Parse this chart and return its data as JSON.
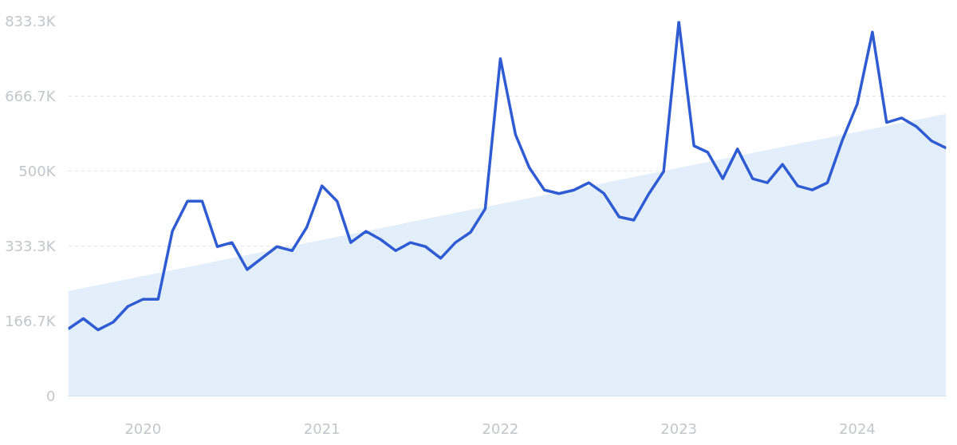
{
  "chart_data": {
    "type": "line",
    "x": [
      "2019-08",
      "2019-09",
      "2019-10",
      "2019-11",
      "2019-12",
      "2020-01",
      "2020-02",
      "2020-03",
      "2020-04",
      "2020-05",
      "2020-06",
      "2020-07",
      "2020-08",
      "2020-09",
      "2020-10",
      "2020-11",
      "2020-12",
      "2021-01",
      "2021-02",
      "2021-03",
      "2021-04",
      "2021-05",
      "2021-06",
      "2021-07",
      "2021-08",
      "2021-09",
      "2021-10",
      "2021-11",
      "2021-12",
      "2022-01",
      "2022-02",
      "2022-03",
      "2022-04",
      "2022-05",
      "2022-06",
      "2022-07",
      "2022-08",
      "2022-09",
      "2022-10",
      "2022-11",
      "2022-12",
      "2023-01",
      "2023-02",
      "2023-03",
      "2023-04",
      "2023-05",
      "2023-06",
      "2023-07",
      "2023-08",
      "2023-09",
      "2023-10",
      "2023-11",
      "2023-12",
      "2024-01",
      "2024-02",
      "2024-03",
      "2024-04",
      "2024-05",
      "2024-06",
      "2024-07"
    ],
    "series": [
      {
        "type": "area",
        "color": "#e3eefb",
        "x": [
          "2019-08",
          "2024-07"
        ],
        "values": [
          233000,
          627000
        ]
      },
      {
        "color": "#2f5bd3",
        "values": [
          149000,
          172000,
          147000,
          164000,
          199000,
          215000,
          215000,
          366000,
          433000,
          433000,
          332000,
          341000,
          281000,
          307000,
          332000,
          323000,
          375000,
          467000,
          433000,
          341000,
          366000,
          348000,
          323000,
          341000,
          332000,
          306000,
          341000,
          364000,
          416000,
          750000,
          581000,
          508000,
          458000,
          450000,
          458000,
          474000,
          450000,
          398000,
          391000,
          450000,
          499000,
          832000,
          556000,
          542000,
          483000,
          549000,
          483000,
          474000,
          515000,
          467000,
          458000,
          474000,
          567000,
          649000,
          809000,
          608000,
          618000,
          599000,
          567000,
          551000
        ]
      }
    ],
    "xlim": [
      "2019-08",
      "2024-07"
    ],
    "xticks": [
      {
        "value": "2020-01",
        "label": "2020"
      },
      {
        "value": "2021-01",
        "label": "2021"
      },
      {
        "value": "2022-01",
        "label": "2022"
      },
      {
        "value": "2023-01",
        "label": "2023"
      },
      {
        "value": "2024-01",
        "label": "2024"
      }
    ],
    "ylim": [
      0,
      833300
    ],
    "yticks": [
      0,
      {
        "value": 166700,
        "label": "166.7K"
      },
      {
        "value": 333300,
        "label": "333.3K"
      },
      {
        "value": 500000,
        "label": "500K"
      },
      {
        "value": 666700,
        "label": "666.7K"
      },
      {
        "value": 833300,
        "label": "833.3K"
      }
    ],
    "grid": "y",
    "line_style": "solid",
    "marker": "none"
  }
}
